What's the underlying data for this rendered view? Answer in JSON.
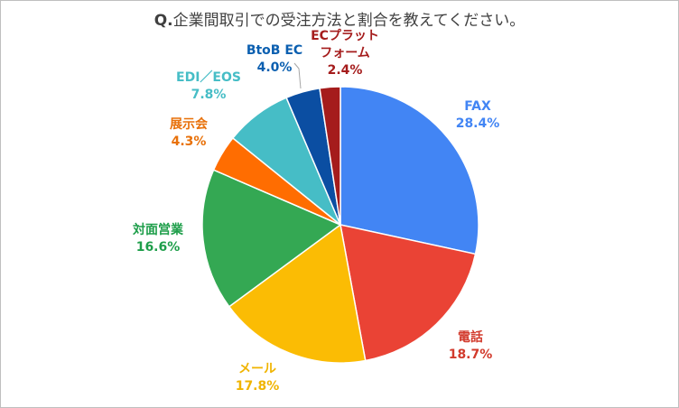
{
  "chart_data": {
    "type": "pie",
    "title_prefix": "Q.",
    "title": "企業間取引での受注方法と割合を教えてください。",
    "slices": [
      {
        "label": "FAX",
        "value": 28.4,
        "value_label": "28.4%",
        "color": "#4285f4"
      },
      {
        "label": "電話",
        "value": 18.7,
        "value_label": "18.7%",
        "color": "#ea4335"
      },
      {
        "label": "メール",
        "value": 17.8,
        "value_label": "17.8%",
        "color": "#fbbc04"
      },
      {
        "label": "対面営業",
        "value": 16.6,
        "value_label": "16.6%",
        "color": "#34a853"
      },
      {
        "label": "展示会",
        "value": 4.3,
        "value_label": "4.3%",
        "color": "#ff6d01"
      },
      {
        "label": "EDI／EOS",
        "value": 7.8,
        "value_label": "7.8%",
        "color": "#46bdc6"
      },
      {
        "label": "BtoB EC",
        "value": 4.0,
        "value_label": "4.0%",
        "color": "#0b4ea2"
      },
      {
        "label_lines": [
          "ECプラット",
          "フォーム"
        ],
        "label": "ECプラットフォーム",
        "value": 2.4,
        "value_label": "2.4%",
        "color": "#a51c1c"
      }
    ],
    "label_colors": [
      "#4285f4",
      "#d23a2c",
      "#f0b400",
      "#1e9e4a",
      "#e8710a",
      "#46bdc6",
      "#0b5fb0",
      "#a51c1c"
    ],
    "legend": "none"
  }
}
